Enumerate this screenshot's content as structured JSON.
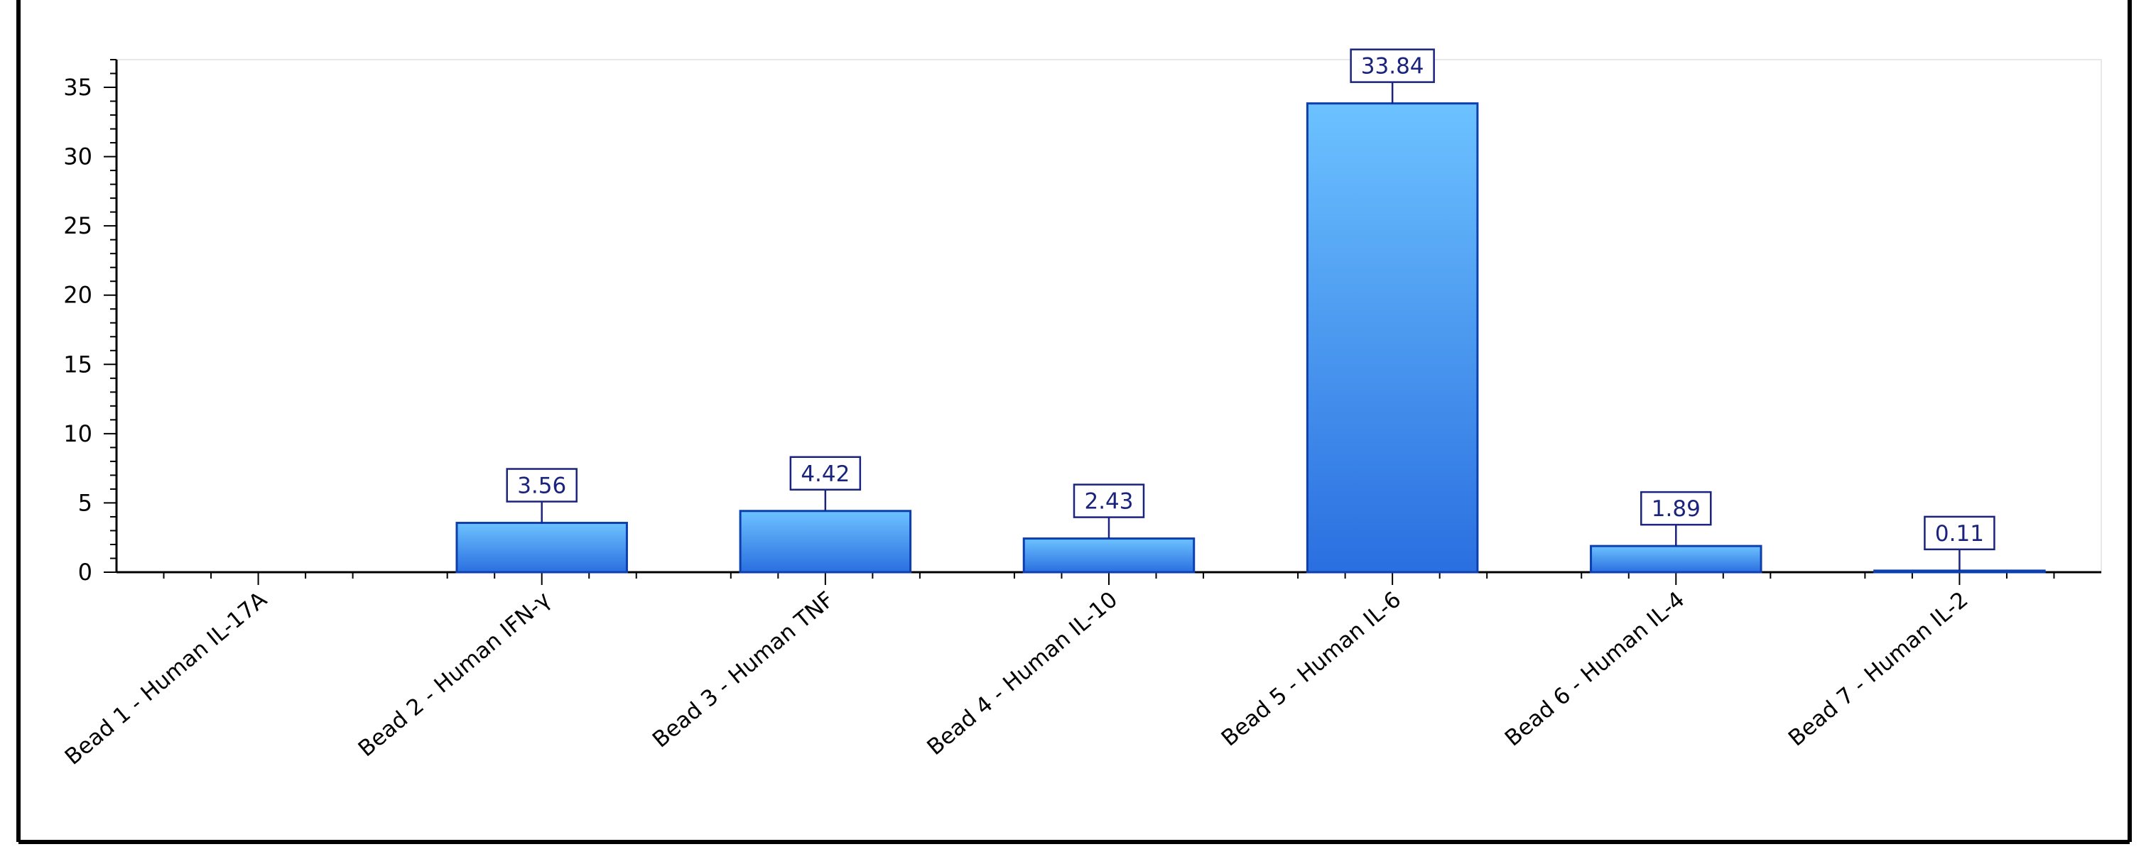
{
  "chart_data": {
    "type": "bar",
    "title": "",
    "xlabel": "",
    "ylabel": "",
    "categories": [
      "Bead 1 - Human IL-17A",
      "Bead 2 - Human IFN-γ",
      "Bead 3 - Human TNF",
      "Bead 4 - Human IL-10",
      "Bead 5 - Human IL-6",
      "Bead 6 - Human IL-4",
      "Bead 7 - Human IL-2"
    ],
    "values": [
      0,
      3.56,
      4.42,
      2.43,
      33.84,
      1.89,
      0.11
    ],
    "data_labels": [
      "",
      "3.56",
      "4.42",
      "2.43",
      "33.84",
      "1.89",
      "0.11"
    ],
    "ylim": [
      0,
      37
    ],
    "yticks": [
      0,
      5,
      10,
      15,
      20,
      25,
      30,
      35
    ],
    "grid": false,
    "legend": "none",
    "colors": {
      "bar_top": "#6cc2ff",
      "bar_bottom": "#2a6fe0",
      "bar_edge": "#0d3fae",
      "label_border": "#1a237e",
      "label_text": "#1a237e",
      "axis": "#000000"
    }
  }
}
